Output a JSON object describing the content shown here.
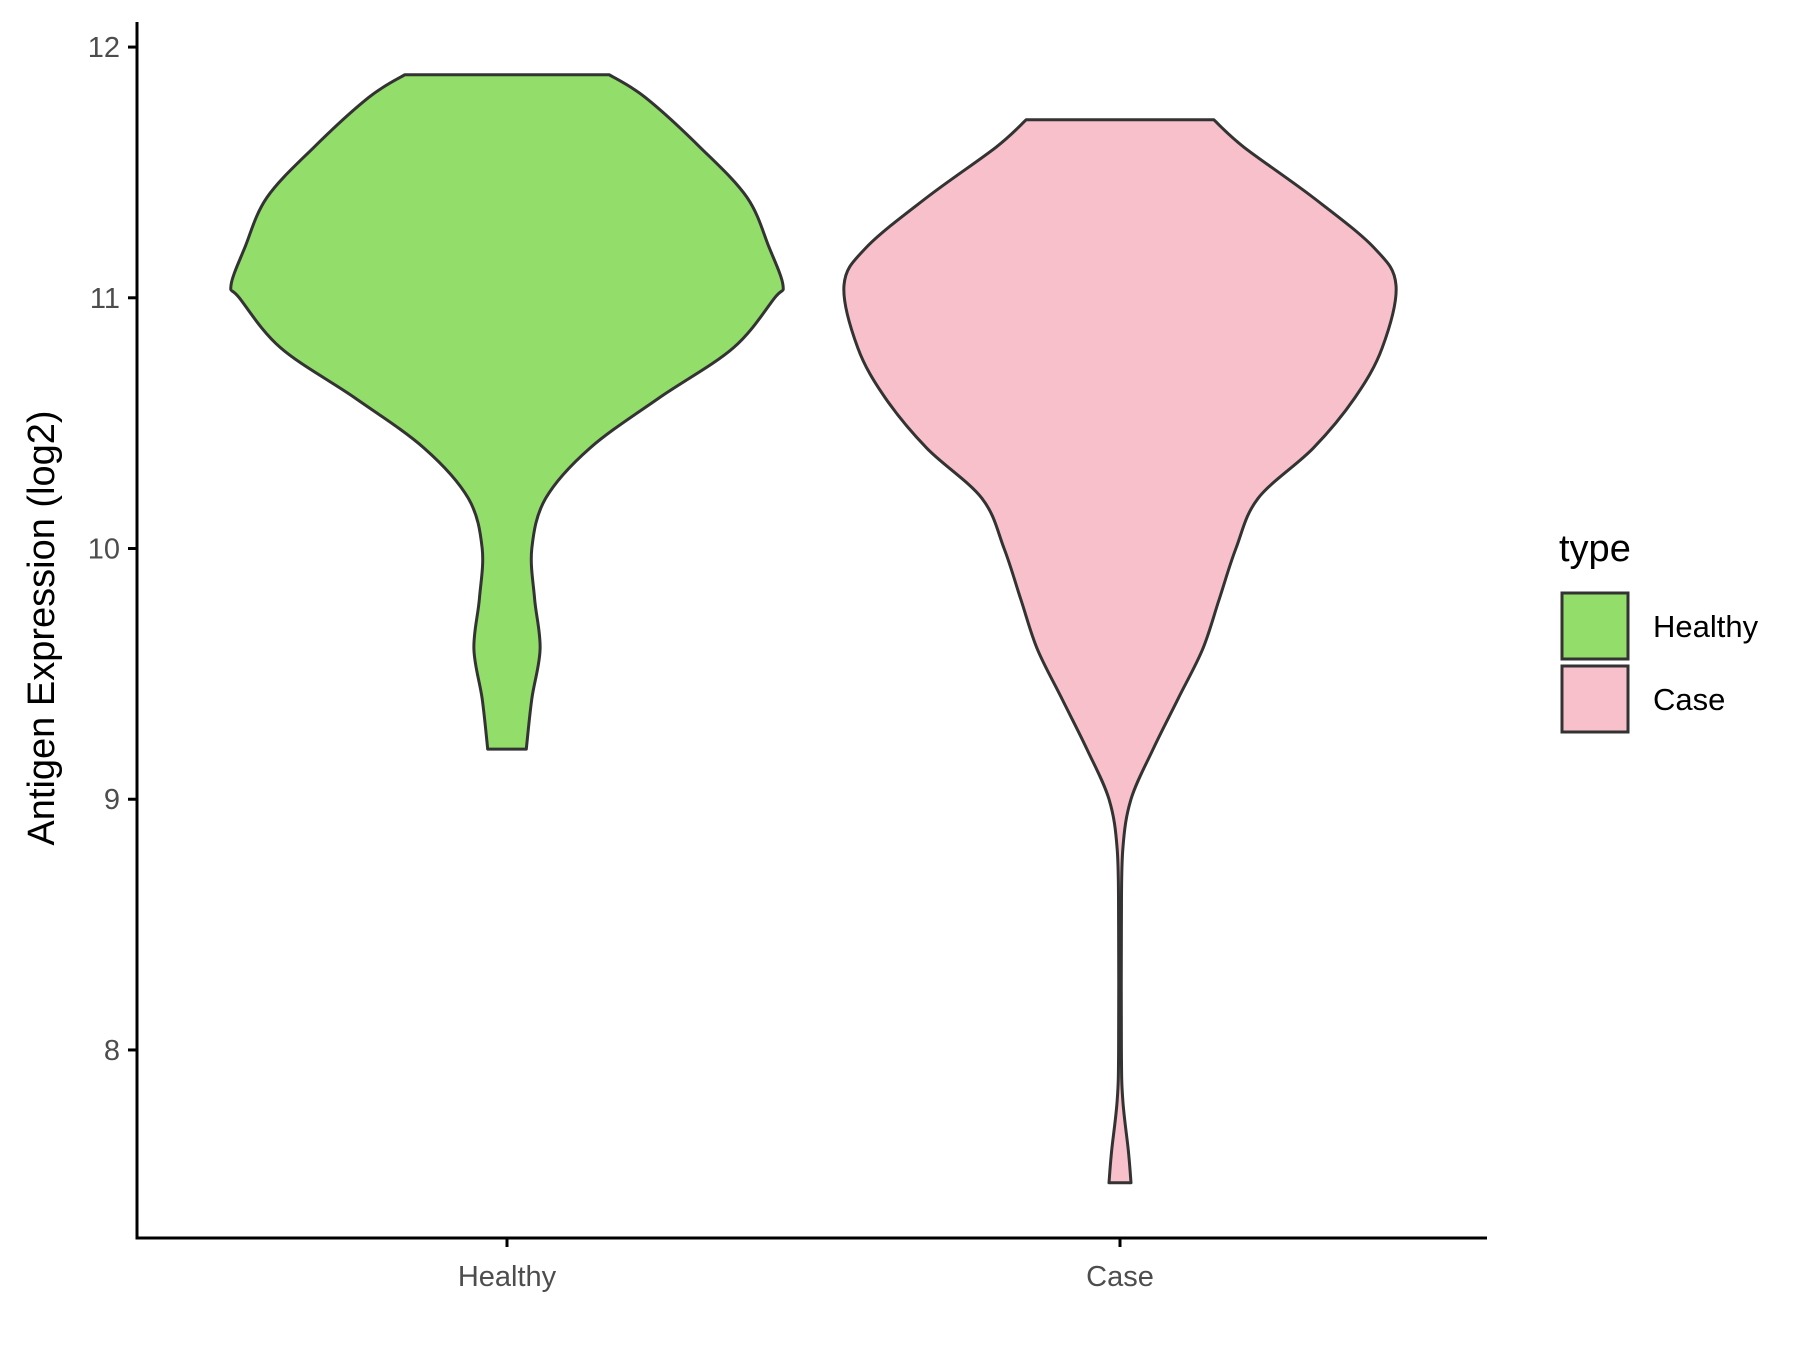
{
  "chart_data": {
    "type": "violin",
    "ylabel": "Antigen Expression (log2)",
    "xlabel": "",
    "ylim": [
      7.25,
      12.1
    ],
    "yticks": [
      8,
      9,
      10,
      11,
      12
    ],
    "categories": [
      "Healthy",
      "Case"
    ],
    "legend": {
      "title": "type",
      "placement": "right",
      "entries": [
        "Healthy",
        "Case"
      ]
    },
    "series": [
      {
        "category": "Healthy",
        "color": "#93dd6a",
        "min": 9.2,
        "max": 11.89,
        "density_profile": [
          [
            9.2,
            0.07
          ],
          [
            9.4,
            0.09
          ],
          [
            9.6,
            0.12
          ],
          [
            9.8,
            0.1
          ],
          [
            10.0,
            0.09
          ],
          [
            10.2,
            0.14
          ],
          [
            10.4,
            0.3
          ],
          [
            10.6,
            0.55
          ],
          [
            10.8,
            0.82
          ],
          [
            11.0,
            0.97
          ],
          [
            11.05,
            1.0
          ],
          [
            11.2,
            0.95
          ],
          [
            11.4,
            0.87
          ],
          [
            11.6,
            0.7
          ],
          [
            11.8,
            0.5
          ],
          [
            11.89,
            0.37
          ]
        ]
      },
      {
        "category": "Case",
        "color": "#f7c0cb",
        "min": 7.47,
        "max": 11.71,
        "density_profile": [
          [
            7.47,
            0.04
          ],
          [
            7.6,
            0.03
          ],
          [
            7.8,
            0.01
          ],
          [
            8.0,
            0.005
          ],
          [
            8.5,
            0.005
          ],
          [
            8.8,
            0.01
          ],
          [
            9.0,
            0.04
          ],
          [
            9.2,
            0.12
          ],
          [
            9.4,
            0.21
          ],
          [
            9.6,
            0.3
          ],
          [
            9.8,
            0.36
          ],
          [
            10.0,
            0.42
          ],
          [
            10.2,
            0.5
          ],
          [
            10.4,
            0.7
          ],
          [
            10.6,
            0.85
          ],
          [
            10.8,
            0.95
          ],
          [
            11.05,
            1.0
          ],
          [
            11.2,
            0.92
          ],
          [
            11.4,
            0.7
          ],
          [
            11.6,
            0.45
          ],
          [
            11.71,
            0.34
          ]
        ]
      }
    ]
  }
}
